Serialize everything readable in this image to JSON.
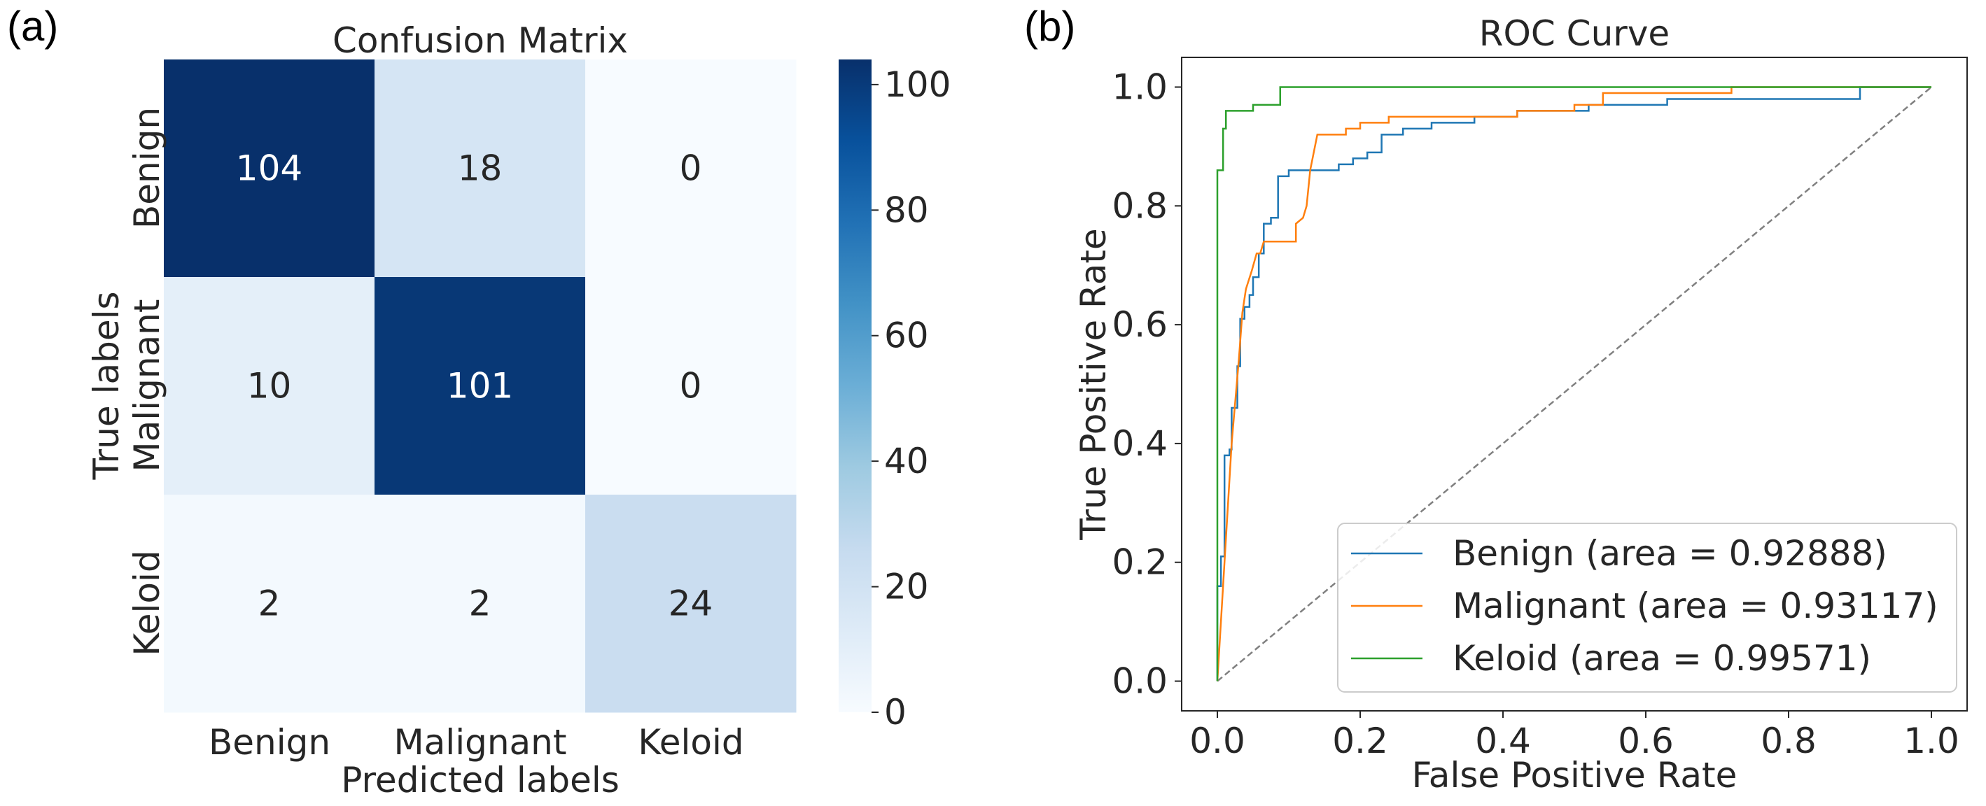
{
  "panels": {
    "a": "(a)",
    "b": "(b)"
  },
  "chart_data": [
    {
      "type": "heatmap",
      "title": "Confusion Matrix",
      "xlabel": "Predicted labels",
      "ylabel": "True labels",
      "x_categories": [
        "Benign",
        "Malignant",
        "Keloid"
      ],
      "y_categories": [
        "Benign",
        "Malignant",
        "Keloid"
      ],
      "values": [
        [
          104,
          18,
          0
        ],
        [
          10,
          101,
          0
        ],
        [
          2,
          2,
          24
        ]
      ],
      "colormap": "Blues",
      "colorbar": {
        "range": [
          0,
          104
        ],
        "ticks": [
          "0",
          "20",
          "40",
          "60",
          "80",
          "100"
        ]
      }
    },
    {
      "type": "line",
      "title": "ROC Curve",
      "xlabel": "False Positive Rate",
      "ylabel": "True Positive Rate",
      "xlim": [
        -0.05,
        1.05
      ],
      "ylim": [
        -0.05,
        1.05
      ],
      "xticks": [
        "0.0",
        "0.2",
        "0.4",
        "0.6",
        "0.8",
        "1.0"
      ],
      "yticks": [
        "0.0",
        "0.2",
        "0.4",
        "0.6",
        "0.8",
        "1.0"
      ],
      "legend_position": "lower-right",
      "diagonal": {
        "style": "dashed",
        "color": "#808080",
        "points": [
          [
            0,
            0
          ],
          [
            1,
            1
          ]
        ]
      },
      "series": [
        {
          "name": "Benign (area = 0.92888)",
          "color": "#1f77b4",
          "points": [
            [
              0,
              0
            ],
            [
              0,
              0.16
            ],
            [
              0.005,
              0.16
            ],
            [
              0.005,
              0.21
            ],
            [
              0.01,
              0.21
            ],
            [
              0.01,
              0.38
            ],
            [
              0.017,
              0.38
            ],
            [
              0.017,
              0.39
            ],
            [
              0.02,
              0.39
            ],
            [
              0.02,
              0.46
            ],
            [
              0.028,
              0.46
            ],
            [
              0.028,
              0.53
            ],
            [
              0.032,
              0.53
            ],
            [
              0.032,
              0.61
            ],
            [
              0.038,
              0.61
            ],
            [
              0.038,
              0.63
            ],
            [
              0.045,
              0.63
            ],
            [
              0.045,
              0.65
            ],
            [
              0.05,
              0.65
            ],
            [
              0.05,
              0.68
            ],
            [
              0.058,
              0.68
            ],
            [
              0.058,
              0.72
            ],
            [
              0.065,
              0.72
            ],
            [
              0.065,
              0.77
            ],
            [
              0.075,
              0.77
            ],
            [
              0.075,
              0.78
            ],
            [
              0.085,
              0.78
            ],
            [
              0.085,
              0.85
            ],
            [
              0.1,
              0.85
            ],
            [
              0.1,
              0.86
            ],
            [
              0.115,
              0.86
            ],
            [
              0.115,
              0.86
            ],
            [
              0.14,
              0.86
            ],
            [
              0.14,
              0.86
            ],
            [
              0.17,
              0.86
            ],
            [
              0.17,
              0.87
            ],
            [
              0.19,
              0.87
            ],
            [
              0.19,
              0.88
            ],
            [
              0.21,
              0.88
            ],
            [
              0.21,
              0.89
            ],
            [
              0.23,
              0.89
            ],
            [
              0.23,
              0.92
            ],
            [
              0.26,
              0.92
            ],
            [
              0.26,
              0.93
            ],
            [
              0.3,
              0.93
            ],
            [
              0.3,
              0.94
            ],
            [
              0.36,
              0.94
            ],
            [
              0.36,
              0.95
            ],
            [
              0.42,
              0.95
            ],
            [
              0.42,
              0.96
            ],
            [
              0.52,
              0.96
            ],
            [
              0.52,
              0.97
            ],
            [
              0.63,
              0.97
            ],
            [
              0.63,
              0.98
            ],
            [
              0.9,
              0.98
            ],
            [
              0.9,
              1.0
            ],
            [
              1.0,
              1.0
            ]
          ]
        },
        {
          "name": "Malignant (area = 0.93117)",
          "color": "#ff7f0e",
          "points": [
            [
              0,
              0
            ],
            [
              0.01,
              0.2
            ],
            [
              0.02,
              0.4
            ],
            [
              0.03,
              0.54
            ],
            [
              0.035,
              0.62
            ],
            [
              0.04,
              0.66
            ],
            [
              0.048,
              0.69
            ],
            [
              0.055,
              0.72
            ],
            [
              0.06,
              0.72
            ],
            [
              0.065,
              0.74
            ],
            [
              0.11,
              0.74
            ],
            [
              0.11,
              0.77
            ],
            [
              0.12,
              0.78
            ],
            [
              0.125,
              0.8
            ],
            [
              0.13,
              0.86
            ],
            [
              0.135,
              0.89
            ],
            [
              0.14,
              0.92
            ],
            [
              0.18,
              0.92
            ],
            [
              0.18,
              0.93
            ],
            [
              0.2,
              0.93
            ],
            [
              0.2,
              0.94
            ],
            [
              0.24,
              0.94
            ],
            [
              0.24,
              0.95
            ],
            [
              0.42,
              0.95
            ],
            [
              0.42,
              0.96
            ],
            [
              0.5,
              0.96
            ],
            [
              0.5,
              0.97
            ],
            [
              0.54,
              0.97
            ],
            [
              0.54,
              0.99
            ],
            [
              0.72,
              0.99
            ],
            [
              0.72,
              1.0
            ],
            [
              1.0,
              1.0
            ]
          ]
        },
        {
          "name": "Keloid (area = 0.99571)",
          "color": "#2ca02c",
          "points": [
            [
              0,
              0
            ],
            [
              0,
              0.86
            ],
            [
              0.008,
              0.86
            ],
            [
              0.008,
              0.93
            ],
            [
              0.012,
              0.93
            ],
            [
              0.012,
              0.96
            ],
            [
              0.05,
              0.96
            ],
            [
              0.05,
              0.97
            ],
            [
              0.088,
              0.97
            ],
            [
              0.088,
              1.0
            ],
            [
              1.0,
              1.0
            ]
          ]
        }
      ]
    }
  ]
}
